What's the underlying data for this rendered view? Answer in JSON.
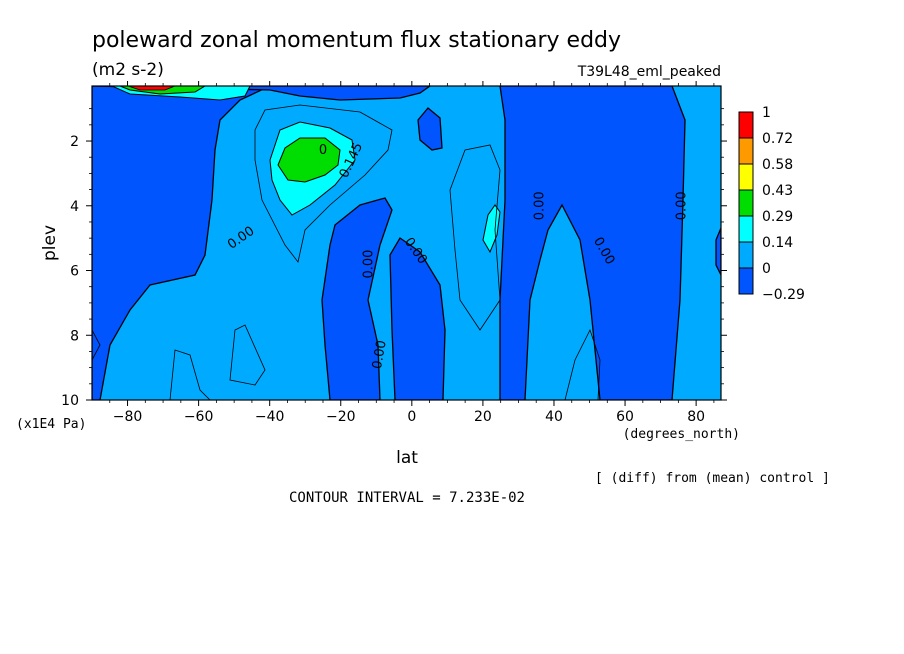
{
  "chart_data": {
    "type": "contour",
    "title": "poleward zonal momentum flux stationary eddy",
    "units": "(m2 s-2)",
    "run_label": "T39L48_eml_peaked",
    "xlabel": "lat",
    "x_units": "(degrees_north)",
    "ylabel": "plev",
    "y_units": "(x1E4 Pa)",
    "xlim": [
      -90,
      87
    ],
    "ylim": [
      10,
      0.3
    ],
    "xticks": [
      -80,
      -60,
      -40,
      -20,
      0,
      20,
      40,
      60,
      80
    ],
    "yticks": [
      2,
      4,
      6,
      8,
      10
    ],
    "contour_interval_text": "CONTOUR INTERVAL = 7.233E-02",
    "diff_note": "[ (diff) from (mean) control ]",
    "contour_labels": [
      {
        "text": "0.00",
        "lat": -48,
        "plev": 5.0,
        "angle": -35
      },
      {
        "text": "0.145",
        "lat": -17,
        "plev": 2.6,
        "angle": -65
      },
      {
        "text": "0",
        "lat": -25,
        "plev": 2.3,
        "angle": 0
      },
      {
        "text": "0.00",
        "lat": -12,
        "plev": 5.8,
        "angle": -90
      },
      {
        "text": "0.00",
        "lat": 1,
        "plev": 5.4,
        "angle": 55
      },
      {
        "text": "0.00",
        "lat": -9,
        "plev": 8.6,
        "angle": -80
      },
      {
        "text": "0.00",
        "lat": 36,
        "plev": 4.0,
        "angle": -90
      },
      {
        "text": "0.00",
        "lat": 54,
        "plev": 5.4,
        "angle": 60
      },
      {
        "text": "0.00",
        "lat": 76,
        "plev": 4.0,
        "angle": -90
      }
    ],
    "colorbar": {
      "levels": [
        "1",
        "0.72",
        "0.58",
        "0.43",
        "0.29",
        "0.14",
        "0",
        "-0.29"
      ],
      "colors": [
        "#ff0000",
        "#ff9900",
        "#ffff00",
        "#00dd00",
        "#00ffff",
        "#00aaff",
        "#0055ff"
      ]
    }
  }
}
